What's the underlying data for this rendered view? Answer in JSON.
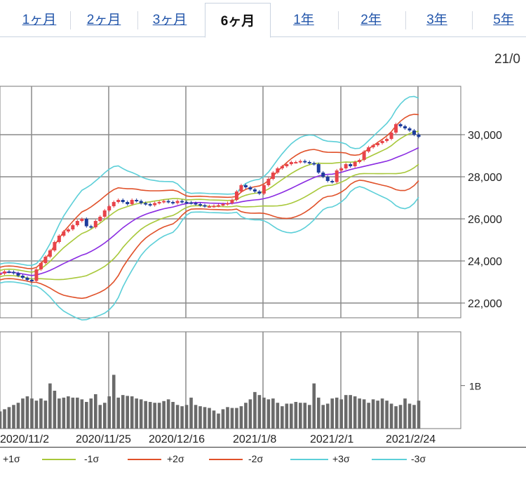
{
  "tabs": [
    {
      "label": "1ヶ月",
      "active": false
    },
    {
      "label": "2ヶ月",
      "active": false
    },
    {
      "label": "3ヶ月",
      "active": false
    },
    {
      "label": "6ヶ月",
      "active": true
    },
    {
      "label": "1年",
      "active": false
    },
    {
      "label": "2年",
      "active": false
    },
    {
      "label": "3年",
      "active": false
    },
    {
      "label": "5年",
      "active": false
    }
  ],
  "corner_date": "21/0",
  "colors": {
    "up": "#e8444a",
    "down": "#1d3c9c",
    "ma": "#8a2be2",
    "sigma1": "#a8c83a",
    "sigma2": "#e0512a",
    "sigma3": "#5ccfd8",
    "volume": "#6a6a6a",
    "grid": "#8a8a8a"
  },
  "legend": [
    {
      "label": "+1σ",
      "color": "#a8c83a"
    },
    {
      "label": "-1σ",
      "color": "#a8c83a"
    },
    {
      "label": "+2σ",
      "color": "#e0512a"
    },
    {
      "label": "-2σ",
      "color": "#e0512a"
    },
    {
      "label": "+3σ",
      "color": "#5ccfd8"
    },
    {
      "label": "-3σ",
      "color": "#5ccfd8"
    }
  ],
  "chart_data": {
    "type": "candlestick",
    "x_labels": [
      "2020/11/2",
      "2020/11/25",
      "2020/12/16",
      "2021/1/8",
      "2021/2/1",
      "2021/2/24"
    ],
    "y_ticks": [
      {
        "value": 22000,
        "label": "22,000"
      },
      {
        "value": 24000,
        "label": "24,000"
      },
      {
        "value": 26000,
        "label": "26,000"
      },
      {
        "value": 28000,
        "label": "28,000"
      },
      {
        "value": 30000,
        "label": "30,000"
      }
    ],
    "ylim": [
      21300,
      32300
    ],
    "volume_tick": {
      "value": 1.0,
      "label": "1B"
    },
    "volume_ylim": [
      0,
      2.25
    ],
    "close": [
      23400,
      23500,
      23480,
      23420,
      23300,
      23200,
      23100,
      23050,
      23600,
      23900,
      24200,
      24500,
      24900,
      25200,
      25400,
      25500,
      25700,
      25900,
      26000,
      25650,
      25600,
      25900,
      26100,
      26400,
      26600,
      26800,
      26900,
      26800,
      26700,
      26900,
      26850,
      26750,
      26700,
      26650,
      26750,
      26800,
      26850,
      26800,
      26750,
      26850,
      26800,
      26780,
      26750,
      26700,
      26650,
      26600,
      26600,
      26620,
      26650,
      26700,
      26750,
      26900,
      27300,
      27600,
      27500,
      27400,
      27300,
      27200,
      27600,
      27900,
      28200,
      28400,
      28500,
      28600,
      28700,
      28700,
      28750,
      28700,
      28650,
      28600,
      28200,
      28000,
      27800,
      27750,
      28300,
      28400,
      28600,
      28500,
      28700,
      28800,
      29200,
      29400,
      29500,
      29600,
      29700,
      29800,
      30100,
      30500,
      30400,
      30300,
      30200,
      30000,
      29900
    ],
    "volume": [
      0.4,
      0.45,
      0.5,
      0.55,
      0.6,
      0.7,
      0.75,
      0.7,
      0.65,
      0.7,
      0.65,
      1.05,
      0.88,
      0.7,
      0.72,
      0.75,
      0.72,
      0.72,
      0.68,
      0.62,
      0.7,
      0.8,
      0.55,
      0.6,
      0.75,
      1.25,
      0.72,
      0.78,
      0.76,
      0.75,
      0.7,
      0.68,
      0.64,
      0.62,
      0.6,
      0.6,
      0.64,
      0.68,
      0.62,
      0.55,
      0.52,
      0.55,
      0.72,
      0.55,
      0.52,
      0.5,
      0.48,
      0.42,
      0.35,
      0.45,
      0.5,
      0.48,
      0.48,
      0.52,
      0.6,
      0.68,
      0.85,
      0.78,
      0.72,
      0.68,
      0.7,
      0.6,
      0.52,
      0.58,
      0.58,
      0.62,
      0.6,
      0.6,
      0.55,
      1.05,
      0.72,
      0.55,
      0.58,
      0.7,
      0.72,
      0.68,
      0.78,
      0.78,
      0.75,
      0.7,
      0.68,
      0.6,
      0.68,
      0.65,
      0.7,
      0.65,
      0.58,
      0.52,
      0.55,
      0.7,
      0.58,
      0.55,
      0.65
    ]
  }
}
